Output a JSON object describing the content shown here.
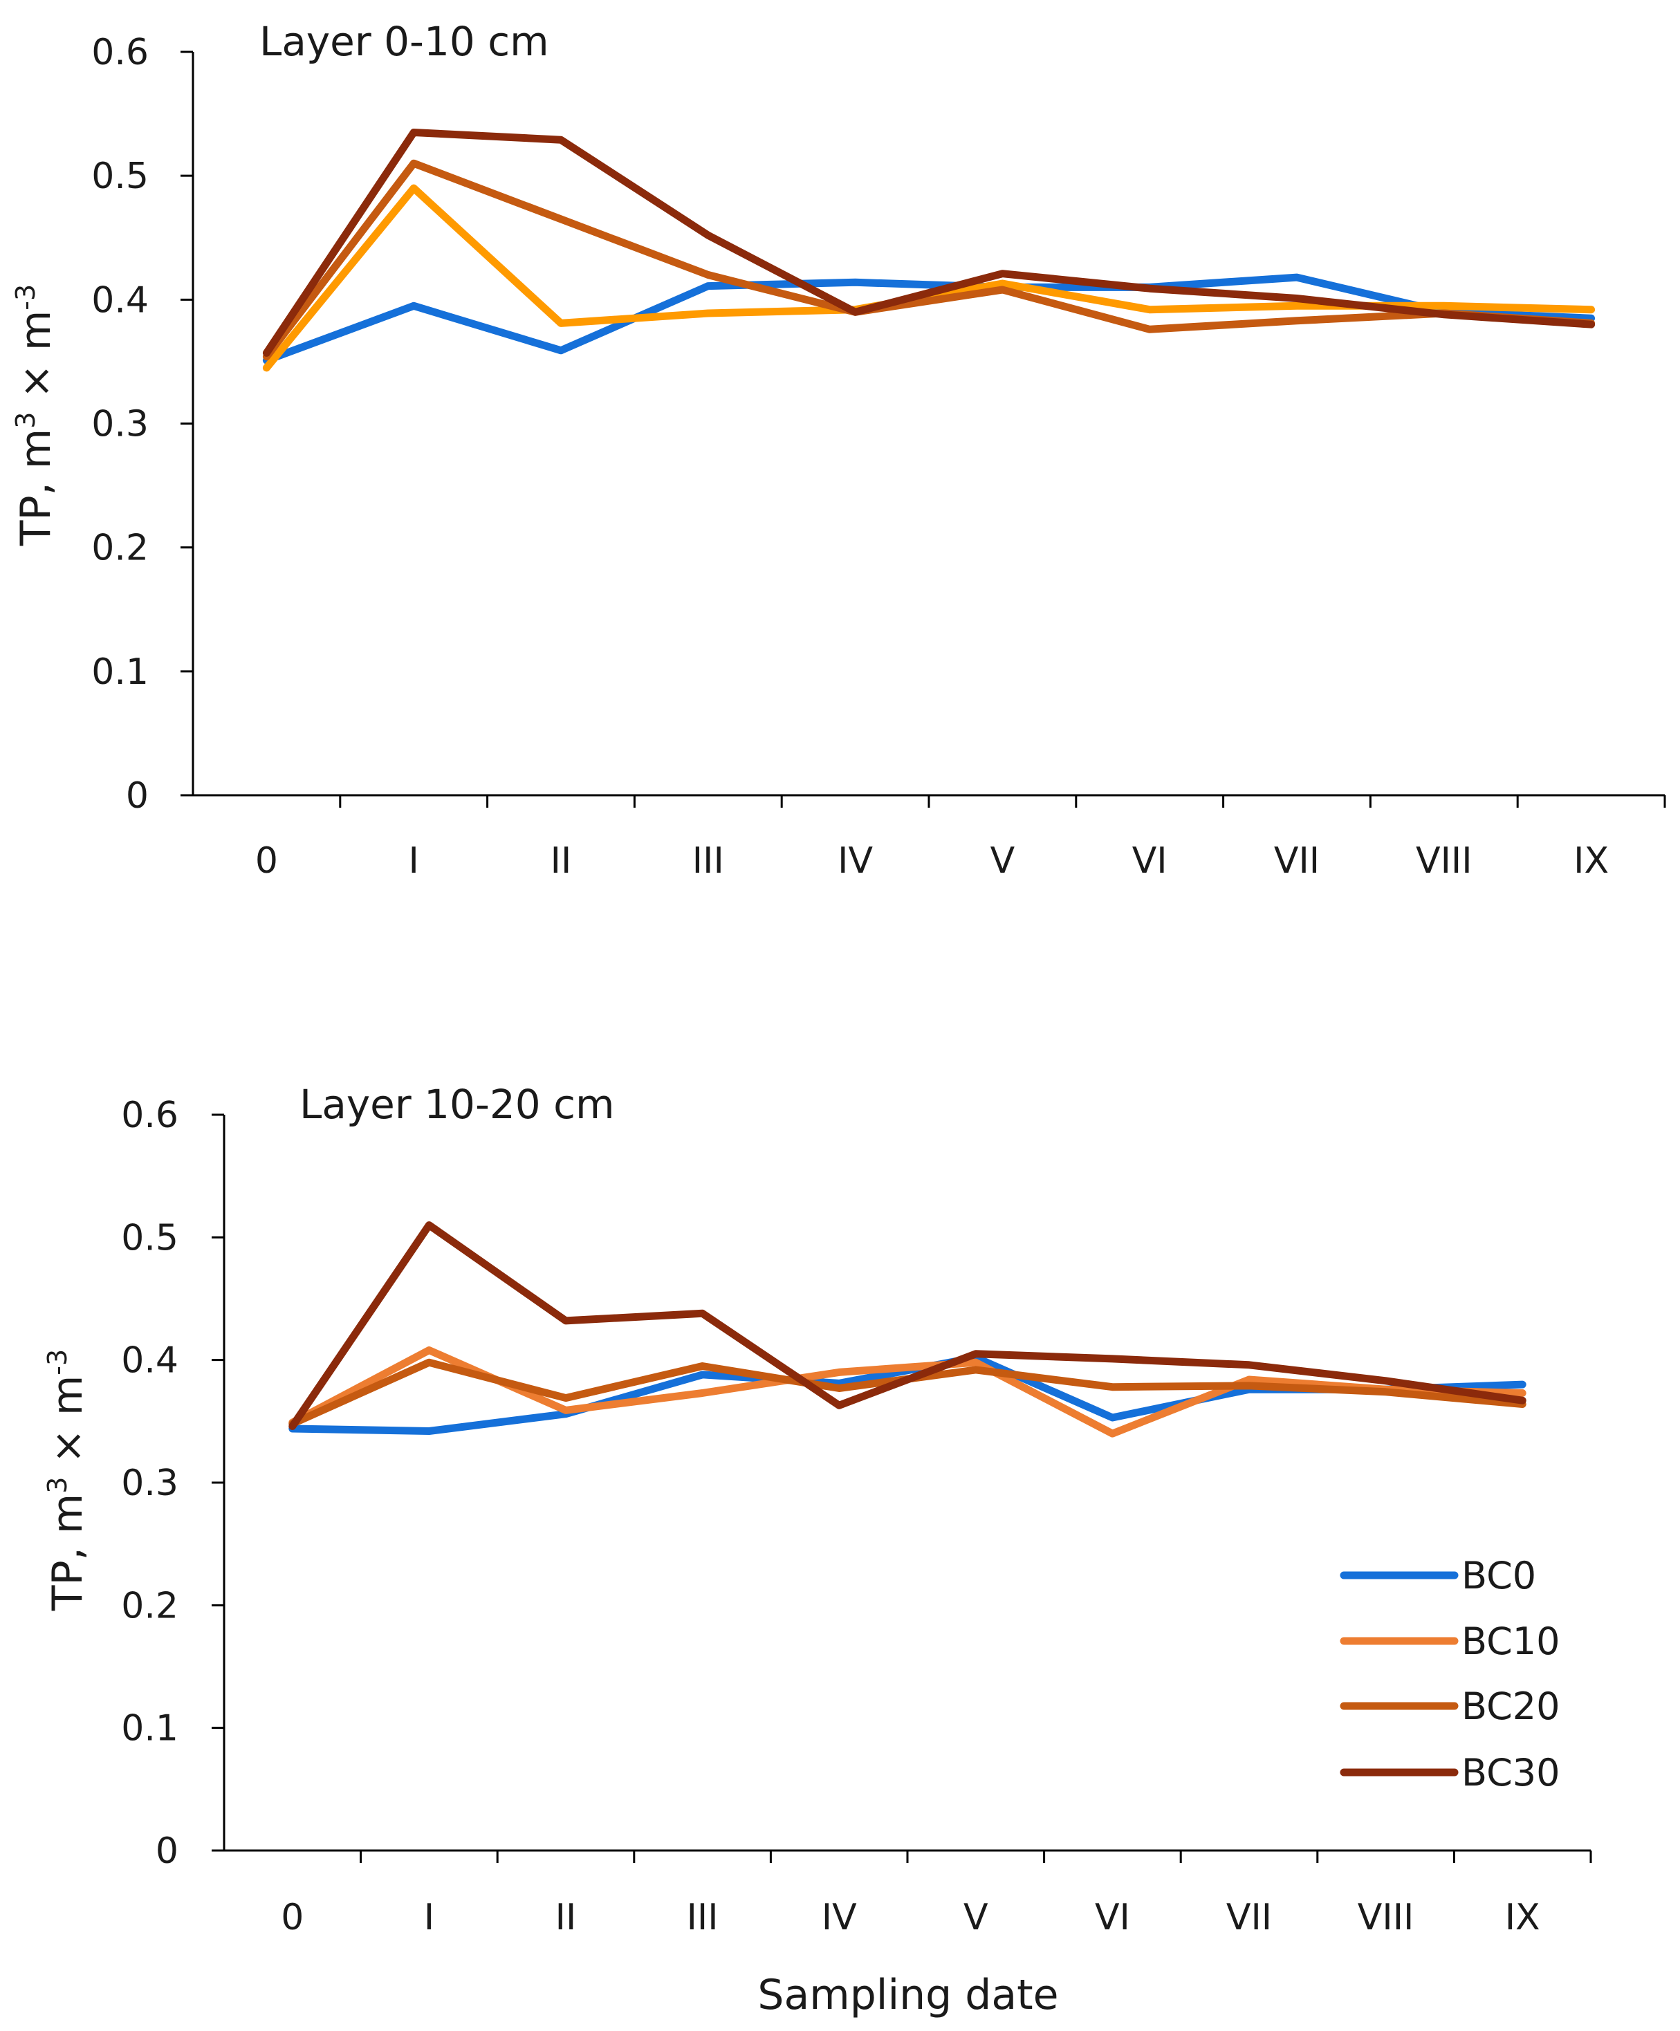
{
  "chart_data": {
    "type": "line",
    "xlabel": "Sampling date",
    "categories": [
      "0",
      "I",
      "II",
      "III",
      "IV",
      "V",
      "VI",
      "VII",
      "VIII",
      "IX"
    ],
    "legend": {
      "placement": "bottom-right",
      "entries": [
        "BC0",
        "BC10",
        "BC20",
        "BC30"
      ]
    },
    "panels": [
      {
        "title": "Layer 0-10 cm",
        "ylabel": {
          "base": "TP, m",
          "exp1": "3",
          "mid": " × m",
          "exp2": "-3"
        },
        "ylim": [
          0,
          0.6
        ],
        "yticks": [
          "0",
          "0.1",
          "0.2",
          "0.3",
          "0.4",
          "0.5",
          "0.6"
        ],
        "series": [
          {
            "name": "BC0",
            "color": "#1570D9",
            "values": [
              0.351,
              0.395,
              0.359,
              0.411,
              0.414,
              0.41,
              0.41,
              0.418,
              0.39,
              0.385
            ]
          },
          {
            "name": "BC10",
            "color": "#FF9A00",
            "values": [
              0.345,
              0.49,
              0.381,
              0.389,
              0.392,
              0.413,
              0.392,
              0.395,
              0.395,
              0.392
            ]
          },
          {
            "name": "BC20",
            "color": "#C55A11",
            "values": [
              0.354,
              0.51,
              0.465,
              0.42,
              0.39,
              0.408,
              0.376,
              0.383,
              0.389,
              0.381
            ]
          },
          {
            "name": "BC30",
            "color": "#8B2A0B",
            "values": [
              0.357,
              0.535,
              0.529,
              0.452,
              0.39,
              0.421,
              0.409,
              0.401,
              0.388,
              0.38
            ]
          }
        ]
      },
      {
        "title": "Layer 10-20 cm",
        "ylabel": {
          "base": "TP, m",
          "exp1": "3",
          "mid": " × m",
          "exp2": "-3"
        },
        "ylim": [
          0,
          0.6
        ],
        "yticks": [
          "0",
          "0.1",
          "0.2",
          "0.3",
          "0.4",
          "0.5",
          "0.6"
        ],
        "series": [
          {
            "name": "BC0",
            "color": "#1570D9",
            "values": [
              0.344,
              0.342,
              0.356,
              0.388,
              0.381,
              0.402,
              0.353,
              0.376,
              0.376,
              0.38
            ]
          },
          {
            "name": "BC10",
            "color": "#ED7D31",
            "values": [
              0.349,
              0.408,
              0.359,
              0.373,
              0.39,
              0.398,
              0.34,
              0.384,
              0.376,
              0.373
            ]
          },
          {
            "name": "BC20",
            "color": "#C55A11",
            "values": [
              0.348,
              0.398,
              0.369,
              0.395,
              0.377,
              0.392,
              0.378,
              0.379,
              0.374,
              0.364
            ]
          },
          {
            "name": "BC30",
            "color": "#8B2A0B",
            "values": [
              0.346,
              0.51,
              0.432,
              0.438,
              0.363,
              0.405,
              0.401,
              0.396,
              0.383,
              0.367
            ]
          }
        ]
      }
    ]
  }
}
